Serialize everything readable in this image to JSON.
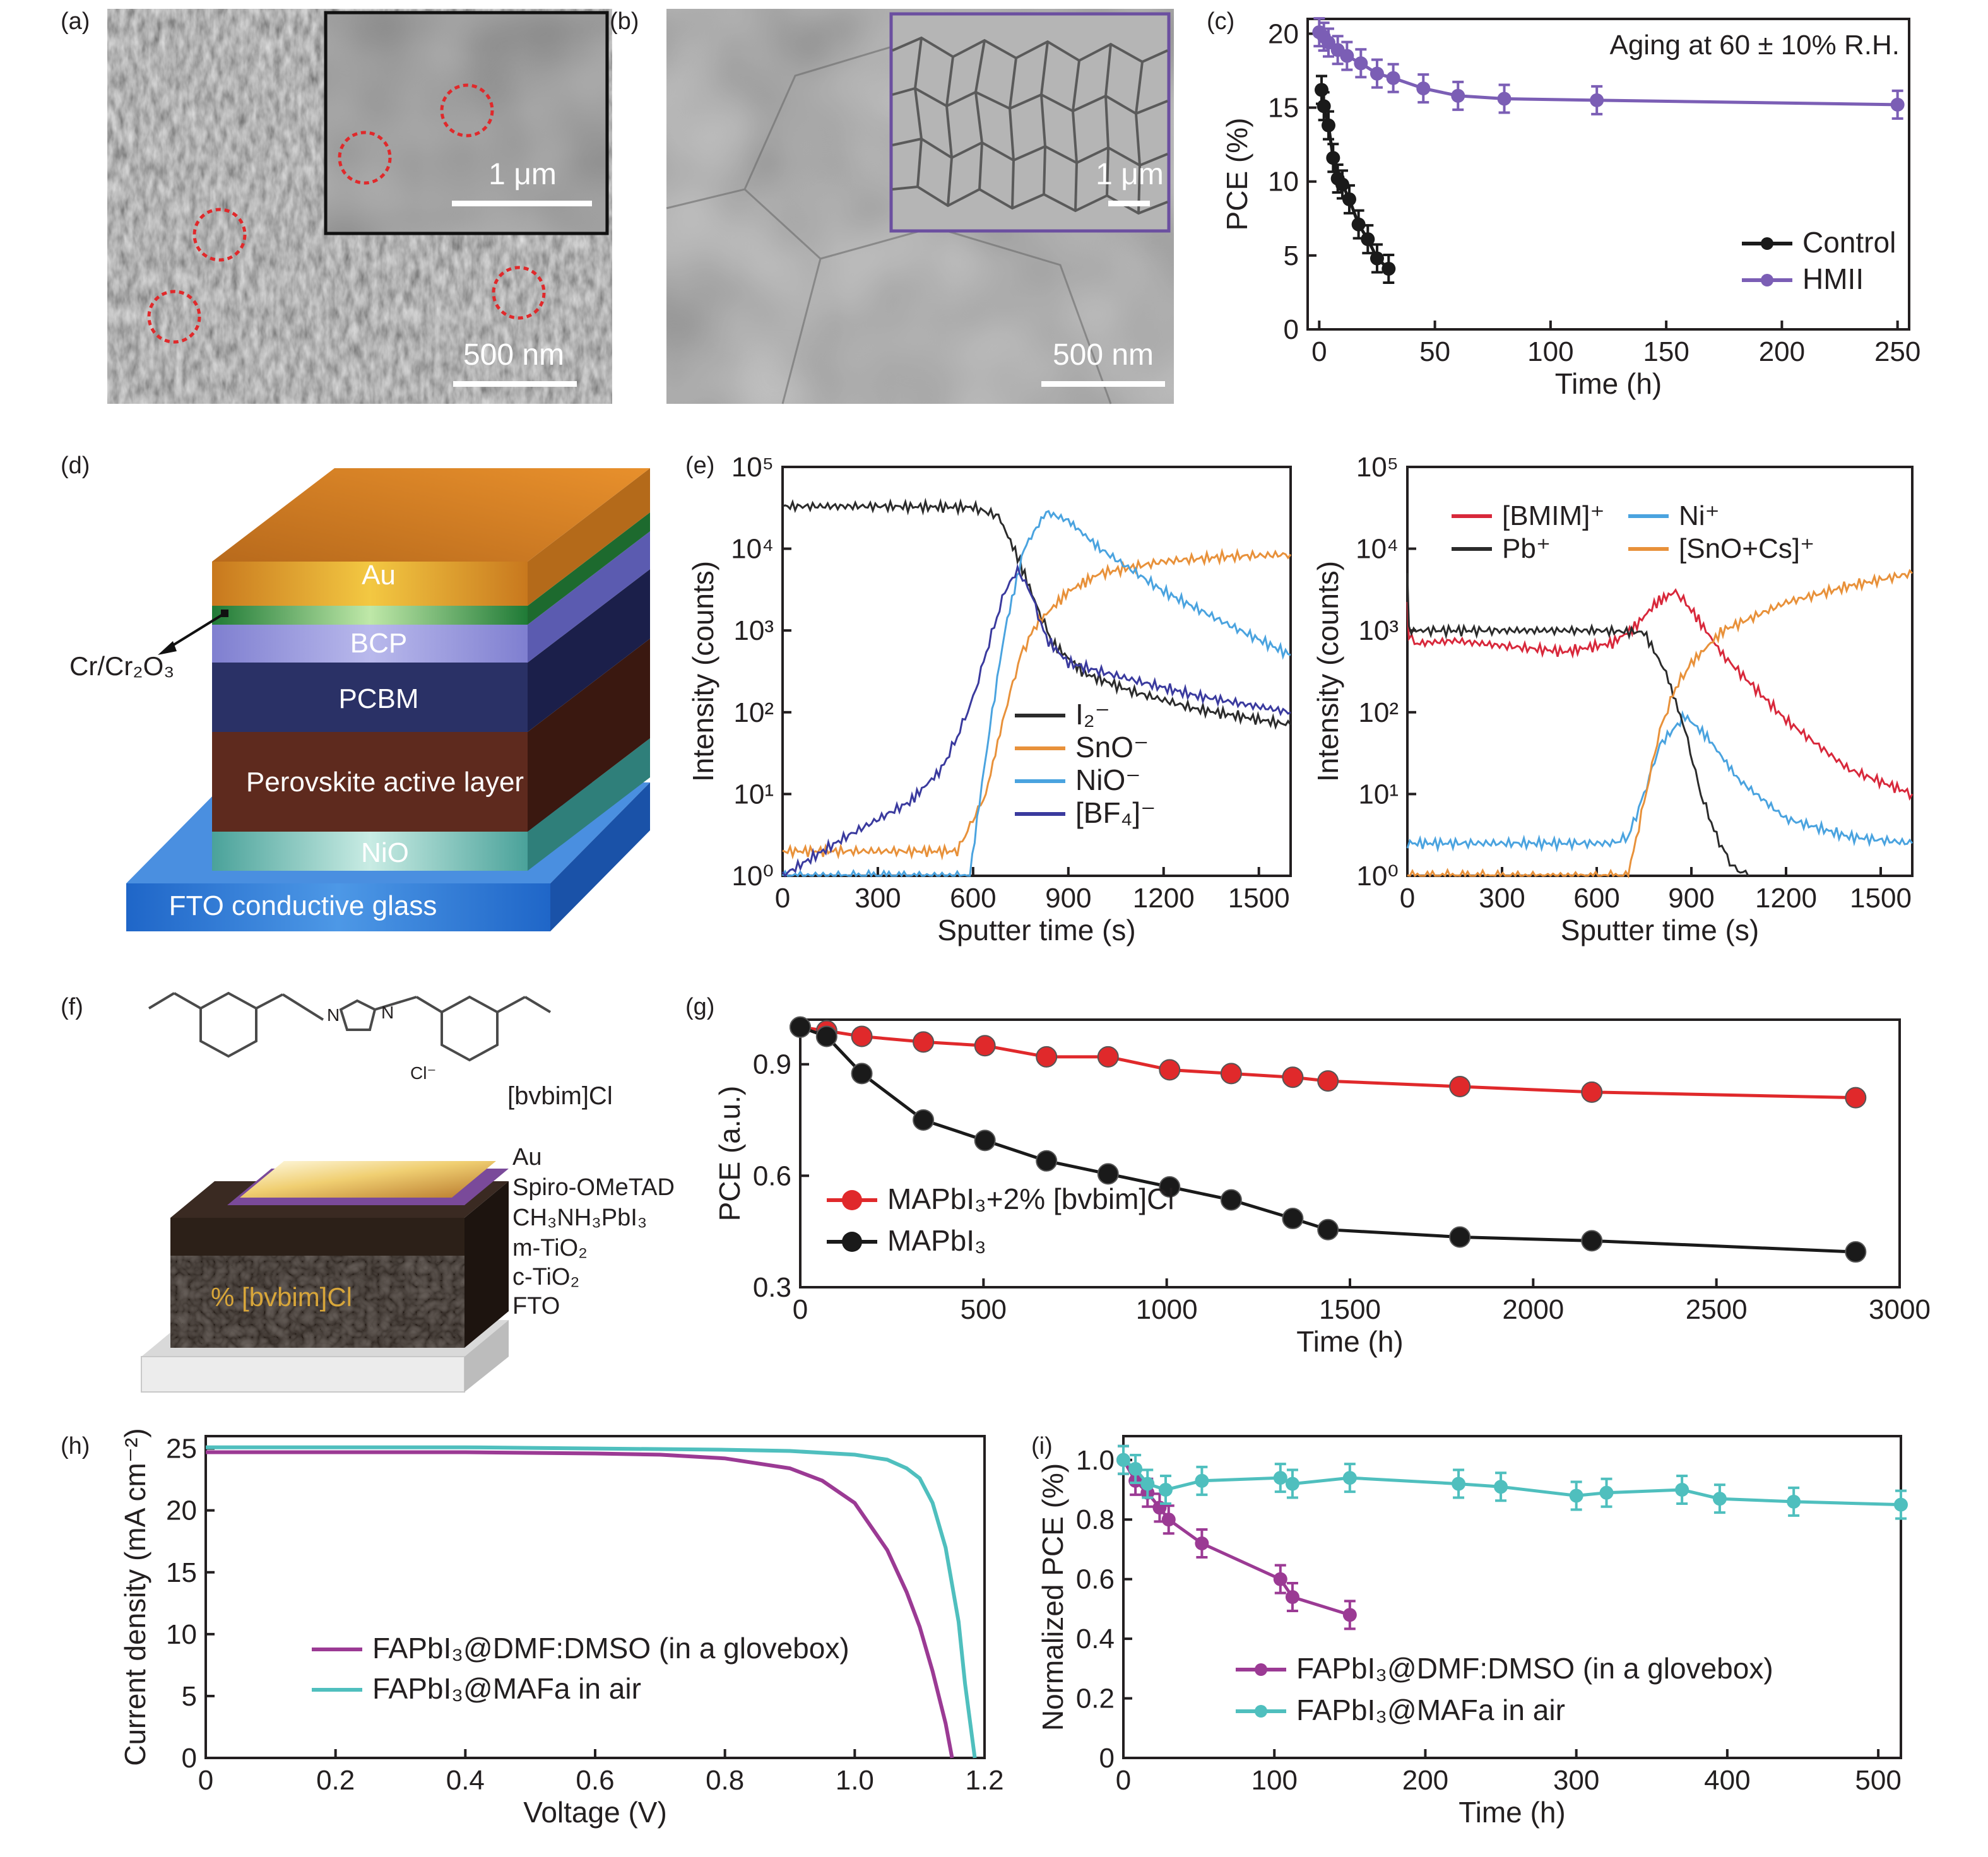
{
  "panels": {
    "a": {
      "label": "(a)",
      "scale": "500 nm",
      "inset_scale": "1 μm",
      "colors": {
        "background": "#7f7f7f",
        "marker": "#e0292b"
      }
    },
    "b": {
      "label": "(b)",
      "scale": "500 nm",
      "inset_scale": "1 μm",
      "colors": {
        "background": "#9b9b9b",
        "inset_border": "#6b4fa0"
      }
    },
    "d": {
      "label": "(d)",
      "layers": [
        "Au",
        "BCP",
        "PCBM",
        "Perovskite active layer",
        "NiO",
        "FTO conductive glass"
      ],
      "callout": "Cr/Cr₂O₃"
    },
    "f": {
      "label": "(f)",
      "molecule_name": "[bvbim]Cl",
      "counter_ion": "Cl⁻",
      "layers": [
        "Au",
        "Spiro-OMeTAD",
        "CH₃NH₃PbI₃",
        "m-TiO₂",
        "c-TiO₂",
        "FTO"
      ],
      "device_label": "% [bvbim]Cl"
    }
  },
  "chart_data": [
    {
      "id": "c",
      "label": "(c)",
      "type": "line",
      "title": "",
      "annotation": "Aging at 60 ± 10% R.H.",
      "xlabel": "Time (h)",
      "ylabel": "PCE (%)",
      "xlim": [
        -5,
        255
      ],
      "ylim": [
        0,
        21
      ],
      "xticks": [
        0,
        50,
        100,
        150,
        200,
        250
      ],
      "yticks": [
        0,
        5,
        10,
        15,
        20
      ],
      "legend": "bottom-right",
      "series": [
        {
          "name": "Control",
          "color": "#1a1a1a",
          "x": [
            1,
            2,
            4,
            6,
            8,
            10,
            13,
            17,
            21,
            25,
            30
          ],
          "y": [
            16.2,
            15.1,
            13.8,
            11.6,
            10.2,
            9.8,
            8.8,
            7.1,
            6.1,
            4.8,
            4.1
          ]
        },
        {
          "name": "HMII",
          "color": "#7b5eb5",
          "x": [
            0,
            2,
            4,
            8,
            12,
            18,
            25,
            32,
            45,
            60,
            80,
            120,
            250
          ],
          "y": [
            20.1,
            19.8,
            19.4,
            18.9,
            18.5,
            18.0,
            17.3,
            17.0,
            16.3,
            15.8,
            15.6,
            15.5,
            15.2
          ]
        }
      ]
    },
    {
      "id": "e1",
      "label": "(e)",
      "type": "line",
      "title": "",
      "xlabel": "Sputter time (s)",
      "ylabel": "Intensity (counts)",
      "yscale": "log",
      "xlim": [
        0,
        1600
      ],
      "ylim": [
        1,
        100000
      ],
      "xticks": [
        0,
        300,
        600,
        900,
        1200,
        1500
      ],
      "yticks": [
        "10⁰",
        "10¹",
        "10²",
        "10³",
        "10⁴",
        "10⁵"
      ],
      "legend": "bottom-right",
      "series": [
        {
          "name": "I₂⁻",
          "color": "#2b2b2b",
          "x": [
            0,
            300,
            600,
            680,
            740,
            800,
            850,
            950,
            1100,
            1300,
            1600
          ],
          "y": [
            33000,
            33000,
            32000,
            25000,
            8000,
            2000,
            700,
            300,
            180,
            110,
            70
          ]
        },
        {
          "name": "SnO⁻",
          "color": "#e8913a",
          "x": [
            0,
            550,
            640,
            700,
            750,
            800,
            900,
            1000,
            1200,
            1400,
            1600
          ],
          "y": [
            2,
            2,
            10,
            100,
            500,
            1200,
            3000,
            5000,
            7000,
            8000,
            8500
          ]
        },
        {
          "name": "NiO⁻",
          "color": "#4aa3df",
          "x": [
            0,
            590,
            620,
            660,
            700,
            760,
            830,
            900,
            1000,
            1200,
            1400,
            1600
          ],
          "y": [
            1,
            1,
            8,
            100,
            1000,
            10000,
            28000,
            22000,
            10000,
            3000,
            1200,
            500
          ]
        },
        {
          "name": "[BF₄]⁻",
          "color": "#3a3a9e",
          "x": [
            0,
            200,
            400,
            500,
            550,
            600,
            650,
            700,
            740,
            780,
            830,
            900,
            1100,
            1300,
            1600
          ],
          "y": [
            1,
            3,
            8,
            20,
            50,
            150,
            700,
            3000,
            5500,
            3000,
            800,
            400,
            250,
            160,
            100
          ]
        }
      ]
    },
    {
      "id": "e2",
      "type": "line",
      "title": "",
      "xlabel": "Sputter time (s)",
      "ylabel": "Intensity (counts)",
      "yscale": "log",
      "xlim": [
        0,
        1600
      ],
      "ylim": [
        1,
        100000
      ],
      "xticks": [
        0,
        300,
        600,
        900,
        1200,
        1500
      ],
      "yticks": [
        "10⁰",
        "10¹",
        "10²",
        "10³",
        "10⁴",
        "10⁵"
      ],
      "legend": "top",
      "series": [
        {
          "name": "[BMIM]⁺",
          "color": "#d8283b",
          "x": [
            0,
            5,
            40,
            150,
            300,
            500,
            650,
            720,
            790,
            850,
            900,
            1000,
            1200,
            1400,
            1600
          ],
          "y": [
            2000,
            800,
            700,
            750,
            650,
            550,
            700,
            1100,
            2200,
            3000,
            1800,
            500,
            80,
            20,
            10
          ]
        },
        {
          "name": "Ni⁺",
          "color": "#4aa3df",
          "x": [
            0,
            650,
            700,
            750,
            800,
            880,
            950,
            1050,
            1200,
            1400,
            1600
          ],
          "y": [
            2.5,
            2.5,
            3,
            10,
            40,
            90,
            50,
            15,
            5,
            3,
            2.5
          ]
        },
        {
          "name": "Pb⁺",
          "color": "#2b2b2b",
          "x": [
            0,
            5,
            50,
            300,
            600,
            750,
            820,
            880,
            930,
            980,
            1030,
            1080
          ],
          "y": [
            5000,
            1000,
            1000,
            1000,
            1000,
            950,
            300,
            60,
            10,
            3,
            1.3,
            1
          ]
        },
        {
          "name": "[SnO+Cs]⁺",
          "color": "#e8913a",
          "x": [
            0,
            700,
            750,
            800,
            850,
            900,
            1000,
            1200,
            1400,
            1600
          ],
          "y": [
            1,
            1,
            8,
            60,
            200,
            400,
            1000,
            2200,
            3500,
            5000
          ]
        }
      ]
    },
    {
      "id": "g",
      "label": "(g)",
      "type": "line",
      "title": "",
      "xlabel": "Time (h)",
      "ylabel": "PCE (a.u.)",
      "xlim": [
        0,
        3000
      ],
      "ylim": [
        0.3,
        1.02
      ],
      "xticks": [
        0,
        500,
        1000,
        1500,
        2000,
        2500,
        3000
      ],
      "yticks": [
        0.3,
        0.6,
        0.9
      ],
      "legend": "bottom-left",
      "series": [
        {
          "name": "MAPbI₃+2% [bvbim]Cl",
          "color": "#e0292b",
          "x": [
            0,
            72,
            168,
            336,
            504,
            672,
            840,
            1008,
            1176,
            1344,
            1440,
            1800,
            2160,
            2880
          ],
          "y": [
            1.0,
            0.99,
            0.975,
            0.96,
            0.95,
            0.92,
            0.92,
            0.885,
            0.875,
            0.865,
            0.855,
            0.84,
            0.825,
            0.81
          ]
        },
        {
          "name": "MAPbI₃",
          "color": "#1a1a1a",
          "x": [
            0,
            72,
            168,
            336,
            504,
            672,
            840,
            1008,
            1176,
            1344,
            1440,
            1800,
            2160,
            2880
          ],
          "y": [
            1.0,
            0.975,
            0.875,
            0.75,
            0.695,
            0.64,
            0.605,
            0.57,
            0.535,
            0.485,
            0.455,
            0.435,
            0.425,
            0.395
          ]
        }
      ]
    },
    {
      "id": "h",
      "label": "(h)",
      "type": "line",
      "title": "",
      "xlabel": "Voltage (V)",
      "ylabel": "Current density (mA cm⁻²)",
      "xlim": [
        0,
        1.2
      ],
      "ylim": [
        0,
        26
      ],
      "xticks": [
        "0",
        "0.2",
        "0.4",
        "0.6",
        "0.8",
        "1.0",
        "1.2"
      ],
      "yticks": [
        0,
        5,
        10,
        15,
        20,
        25
      ],
      "legend": "center",
      "series": [
        {
          "name": "FAPbI₃@DMF:DMSO (in a glovebox)",
          "color": "#9b3a94",
          "x": [
            0,
            0.2,
            0.4,
            0.6,
            0.7,
            0.8,
            0.9,
            0.95,
            1.0,
            1.05,
            1.08,
            1.1,
            1.12,
            1.14,
            1.15
          ],
          "y": [
            24.7,
            24.7,
            24.7,
            24.6,
            24.5,
            24.2,
            23.4,
            22.4,
            20.6,
            16.8,
            13.4,
            10.6,
            7.0,
            2.8,
            0
          ]
        },
        {
          "name": "FAPbI₃@MAFa in air",
          "color": "#4fbfbe",
          "x": [
            0,
            0.2,
            0.4,
            0.6,
            0.8,
            0.9,
            1.0,
            1.05,
            1.08,
            1.1,
            1.12,
            1.14,
            1.16,
            1.17,
            1.185
          ],
          "y": [
            25.1,
            25.1,
            25.1,
            25.0,
            24.9,
            24.8,
            24.5,
            24.1,
            23.4,
            22.6,
            20.6,
            17.0,
            11.0,
            6.0,
            0
          ]
        }
      ]
    },
    {
      "id": "i",
      "label": "(i)",
      "type": "line",
      "title": "",
      "xlabel": "Time (h)",
      "ylabel": "Normalized PCE (%)",
      "xlim": [
        0,
        515
      ],
      "ylim": [
        0,
        1.08
      ],
      "xticks": [
        0,
        100,
        200,
        300,
        400,
        500
      ],
      "yticks": [
        "0",
        "0.2",
        "0.4",
        "0.6",
        "0.8",
        "1.0"
      ],
      "legend": "bottom",
      "series": [
        {
          "name": "FAPbI₃@DMF:DMSO (in a glovebox)",
          "color": "#9b3a94",
          "x": [
            0,
            8,
            16,
            24,
            30,
            52,
            104,
            112,
            150
          ],
          "y": [
            1.0,
            0.93,
            0.89,
            0.84,
            0.8,
            0.72,
            0.6,
            0.54,
            0.48
          ]
        },
        {
          "name": "FAPbI₃@MAFa in air",
          "color": "#4fbfbe",
          "x": [
            0,
            8,
            16,
            28,
            52,
            104,
            112,
            150,
            222,
            250,
            300,
            320,
            370,
            395,
            444,
            515
          ],
          "y": [
            1.0,
            0.97,
            0.92,
            0.9,
            0.93,
            0.94,
            0.92,
            0.94,
            0.92,
            0.91,
            0.88,
            0.89,
            0.9,
            0.87,
            0.86,
            0.85
          ]
        }
      ]
    }
  ]
}
